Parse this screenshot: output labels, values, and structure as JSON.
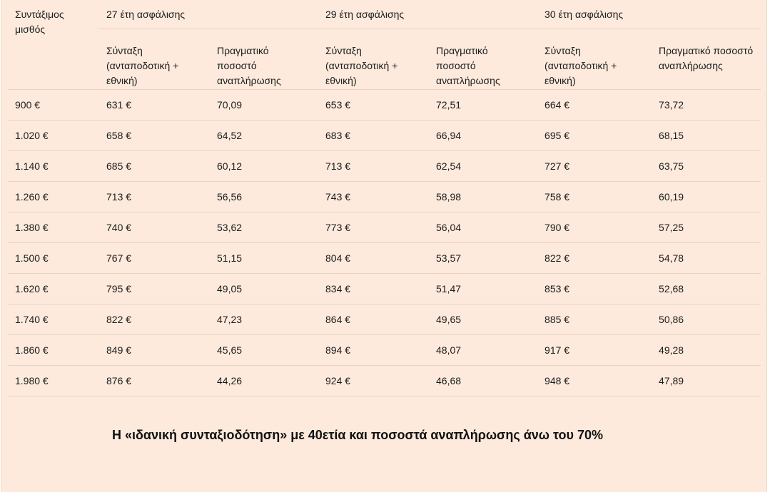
{
  "table": {
    "col_salary_label": "Συντάξιμος μισθός",
    "groups": [
      "27 έτη ασφάλισης",
      "29 έτη ασφάλισης",
      "30 έτη ασφάλισης"
    ],
    "sub_pension_label": "Σύνταξη (ανταποδοτική + εθνική)",
    "sub_rate_label": "Πραγματικό ποσοστό αναπλήρωσης",
    "rows": [
      [
        "900 €",
        "631 €",
        "70,09",
        "653 €",
        "72,51",
        "664 €",
        "73,72"
      ],
      [
        "1.020 €",
        "658 €",
        "64,52",
        "683 €",
        "66,94",
        "695 €",
        "68,15"
      ],
      [
        "1.140 €",
        "685 €",
        "60,12",
        "713 €",
        "62,54",
        "727 €",
        "63,75"
      ],
      [
        "1.260 €",
        "713 €",
        "56,56",
        "743 €",
        "58,98",
        "758 €",
        "60,19"
      ],
      [
        "1.380 €",
        "740 €",
        "53,62",
        "773 €",
        "56,04",
        "790 €",
        "57,25"
      ],
      [
        "1.500 €",
        "767 €",
        "51,15",
        "804 €",
        "53,57",
        "822 €",
        "54,78"
      ],
      [
        "1.620 €",
        "795 €",
        "49,05",
        "834 €",
        "51,47",
        "853 €",
        "52,68"
      ],
      [
        "1.740 €",
        "822 €",
        "47,23",
        "864 €",
        "49,65",
        "885 €",
        "50,86"
      ],
      [
        "1.860 €",
        "849 €",
        "45,65",
        "894 €",
        "48,07",
        "917 €",
        "49,28"
      ],
      [
        "1.980 €",
        "876 €",
        "44,26",
        "924 €",
        "46,68",
        "948 €",
        "47,89"
      ]
    ]
  },
  "caption": "Η «ιδανική συνταξιοδότηση» με 40ετία και ποσοστά αναπλήρωσης άνω του 70%",
  "colors": {
    "background": "#fdeadd",
    "divider": "#e6d3c4",
    "text": "#1c1c1c"
  }
}
